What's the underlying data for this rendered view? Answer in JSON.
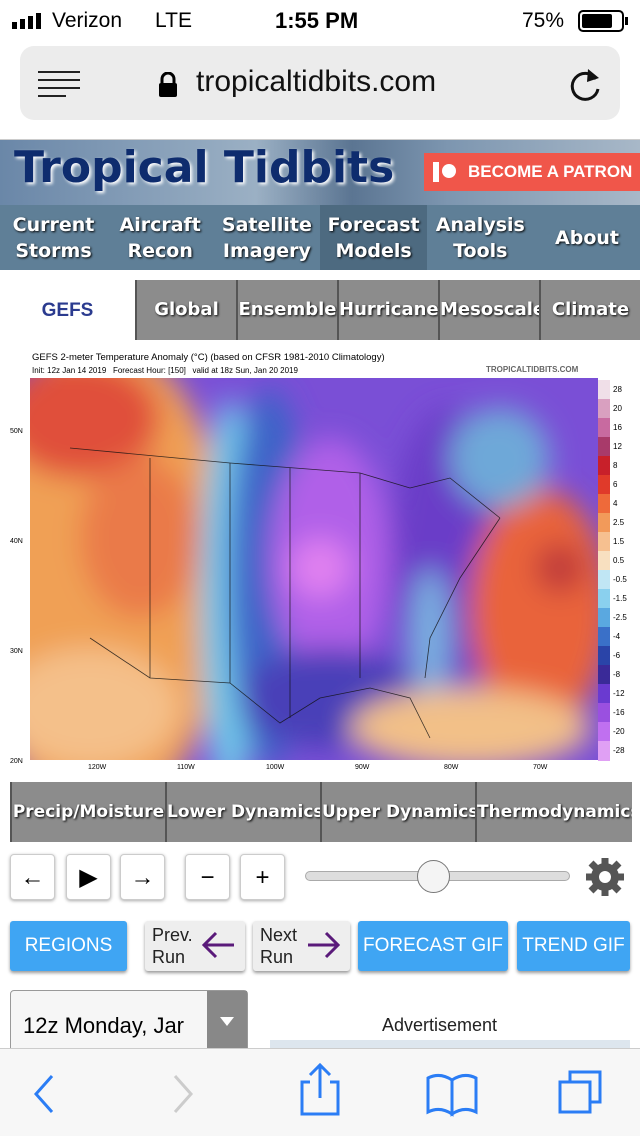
{
  "status": {
    "carrier": "Verizon",
    "network": "LTE",
    "time": "1:55 PM",
    "battery": "75%"
  },
  "browser": {
    "url": "tropicaltidbits.com"
  },
  "header": {
    "logo": "Tropical Tidbits",
    "patron": "BECOME A PATRON"
  },
  "nav": [
    {
      "lines": [
        "Current",
        "Storms"
      ]
    },
    {
      "lines": [
        "Aircraft",
        "Recon"
      ]
    },
    {
      "lines": [
        "Satellite",
        "Imagery"
      ]
    },
    {
      "lines": [
        "Forecast",
        "Models"
      ]
    },
    {
      "lines": [
        "Analysis",
        "Tools"
      ]
    },
    {
      "lines": [
        "About"
      ]
    }
  ],
  "tabs": [
    "GEFS",
    "Global",
    "Ensemble",
    "Hurricane",
    "Mesoscale",
    "Climate"
  ],
  "map": {
    "title": "GEFS 2-meter Temperature Anomaly (°C) (based on CFSR 1981-2010 Climatology)",
    "subtitle": "Init: 12z Jan 14 2019   Forecast Hour: [150]   valid at 18z Sun, Jan 20 2019",
    "credit": "TROPICALTIDBITS.COM",
    "legend": [
      "28",
      "20",
      "16",
      "12",
      "8",
      "6",
      "4",
      "2.5",
      "1.5",
      "0.5",
      "-0.5",
      "-1.5",
      "-2.5",
      "-4",
      "-6",
      "-8",
      "-12",
      "-16",
      "-20",
      "-28"
    ],
    "lat": [
      "50N",
      "40N",
      "30N",
      "20N"
    ],
    "lon": [
      "120W",
      "110W",
      "100W",
      "90W",
      "80W",
      "70W"
    ]
  },
  "subtabs": [
    "Precip/Moisture",
    "Lower Dynamics",
    "Upper Dynamics",
    "Thermodynamics"
  ],
  "controls": [
    "←",
    "▶",
    "→",
    "−",
    "+"
  ],
  "buttons": {
    "regions": "REGIONS",
    "prev": [
      "Prev.",
      "Run"
    ],
    "next": [
      "Next",
      "Run"
    ],
    "forecast_gif": "FORECAST GIF",
    "trend_gif": "TREND GIF"
  },
  "select": "12z Monday, Jar",
  "ad": "Advertisement"
}
